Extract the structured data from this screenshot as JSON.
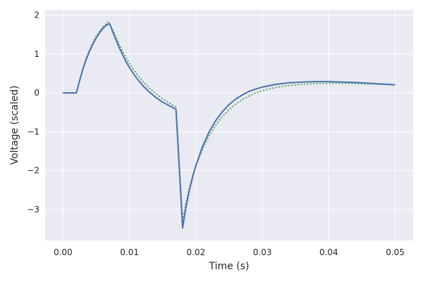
{
  "chart_data": {
    "type": "line",
    "title": "",
    "xlabel": "Time (s)",
    "ylabel": "Voltage (scaled)",
    "xlim": [
      -0.0027,
      0.0527
    ],
    "ylim": [
      -3.8,
      2.14
    ],
    "xticks": [
      0.0,
      0.01,
      0.02,
      0.03,
      0.04,
      0.05
    ],
    "xtick_labels": [
      "0.00",
      "0.01",
      "0.02",
      "0.03",
      "0.04",
      "0.05"
    ],
    "yticks": [
      -3,
      -2,
      -1,
      0,
      1,
      2
    ],
    "ytick_labels": [
      "−3",
      "−2",
      "−1",
      "0",
      "1",
      "2"
    ],
    "grid": true,
    "legend": "none",
    "colors": {
      "background": "#eaeaf2",
      "grid": "#ffffff",
      "solid": "#4c72b0",
      "dotted": "#55a868",
      "text": "#262626"
    },
    "series": [
      {
        "style": "solid",
        "points": [
          [
            0.0,
            0.0
          ],
          [
            0.002,
            0.0
          ],
          [
            0.0025,
            0.32
          ],
          [
            0.003,
            0.62
          ],
          [
            0.0035,
            0.87
          ],
          [
            0.004,
            1.08
          ],
          [
            0.0045,
            1.26
          ],
          [
            0.005,
            1.42
          ],
          [
            0.0055,
            1.55
          ],
          [
            0.006,
            1.66
          ],
          [
            0.0065,
            1.74
          ],
          [
            0.007,
            1.79
          ],
          [
            0.0075,
            1.56
          ],
          [
            0.008,
            1.35
          ],
          [
            0.0085,
            1.15
          ],
          [
            0.009,
            0.97
          ],
          [
            0.0095,
            0.8
          ],
          [
            0.01,
            0.65
          ],
          [
            0.0105,
            0.52
          ],
          [
            0.011,
            0.4
          ],
          [
            0.012,
            0.19
          ],
          [
            0.013,
            0.02
          ],
          [
            0.014,
            -0.12
          ],
          [
            0.015,
            -0.24
          ],
          [
            0.016,
            -0.33
          ],
          [
            0.017,
            -0.42
          ],
          [
            0.018,
            -3.48
          ],
          [
            0.0185,
            -2.95
          ],
          [
            0.019,
            -2.52
          ],
          [
            0.0195,
            -2.17
          ],
          [
            0.02,
            -1.87
          ],
          [
            0.021,
            -1.38
          ],
          [
            0.022,
            -1.0
          ],
          [
            0.023,
            -0.71
          ],
          [
            0.024,
            -0.48
          ],
          [
            0.025,
            -0.3
          ],
          [
            0.026,
            -0.16
          ],
          [
            0.027,
            -0.05
          ],
          [
            0.028,
            0.04
          ],
          [
            0.029,
            0.1
          ],
          [
            0.03,
            0.15
          ],
          [
            0.032,
            0.22
          ],
          [
            0.034,
            0.26
          ],
          [
            0.036,
            0.28
          ],
          [
            0.038,
            0.29
          ],
          [
            0.04,
            0.29
          ],
          [
            0.042,
            0.28
          ],
          [
            0.044,
            0.27
          ],
          [
            0.046,
            0.25
          ],
          [
            0.048,
            0.23
          ],
          [
            0.05,
            0.21
          ]
        ]
      },
      {
        "style": "dotted",
        "points": [
          [
            0.0,
            0.0
          ],
          [
            0.002,
            0.0
          ],
          [
            0.0025,
            0.33
          ],
          [
            0.003,
            0.64
          ],
          [
            0.0035,
            0.9
          ],
          [
            0.004,
            1.11
          ],
          [
            0.0045,
            1.3
          ],
          [
            0.005,
            1.46
          ],
          [
            0.0055,
            1.59
          ],
          [
            0.006,
            1.7
          ],
          [
            0.0065,
            1.78
          ],
          [
            0.0068,
            1.83
          ],
          [
            0.0075,
            1.62
          ],
          [
            0.008,
            1.42
          ],
          [
            0.0085,
            1.23
          ],
          [
            0.009,
            1.06
          ],
          [
            0.0095,
            0.9
          ],
          [
            0.01,
            0.76
          ],
          [
            0.0105,
            0.63
          ],
          [
            0.011,
            0.51
          ],
          [
            0.012,
            0.3
          ],
          [
            0.013,
            0.12
          ],
          [
            0.014,
            -0.02
          ],
          [
            0.015,
            -0.15
          ],
          [
            0.016,
            -0.26
          ],
          [
            0.017,
            -0.36
          ],
          [
            0.018,
            -3.27
          ],
          [
            0.0185,
            -2.84
          ],
          [
            0.019,
            -2.46
          ],
          [
            0.0195,
            -2.14
          ],
          [
            0.02,
            -1.88
          ],
          [
            0.021,
            -1.45
          ],
          [
            0.022,
            -1.1
          ],
          [
            0.023,
            -0.83
          ],
          [
            0.024,
            -0.61
          ],
          [
            0.025,
            -0.43
          ],
          [
            0.026,
            -0.29
          ],
          [
            0.027,
            -0.17
          ],
          [
            0.028,
            -0.08
          ],
          [
            0.029,
            0.0
          ],
          [
            0.03,
            0.06
          ],
          [
            0.032,
            0.14
          ],
          [
            0.034,
            0.19
          ],
          [
            0.036,
            0.22
          ],
          [
            0.038,
            0.24
          ],
          [
            0.04,
            0.25
          ],
          [
            0.042,
            0.25
          ],
          [
            0.044,
            0.24
          ],
          [
            0.046,
            0.23
          ],
          [
            0.048,
            0.22
          ],
          [
            0.05,
            0.2
          ]
        ]
      }
    ]
  }
}
